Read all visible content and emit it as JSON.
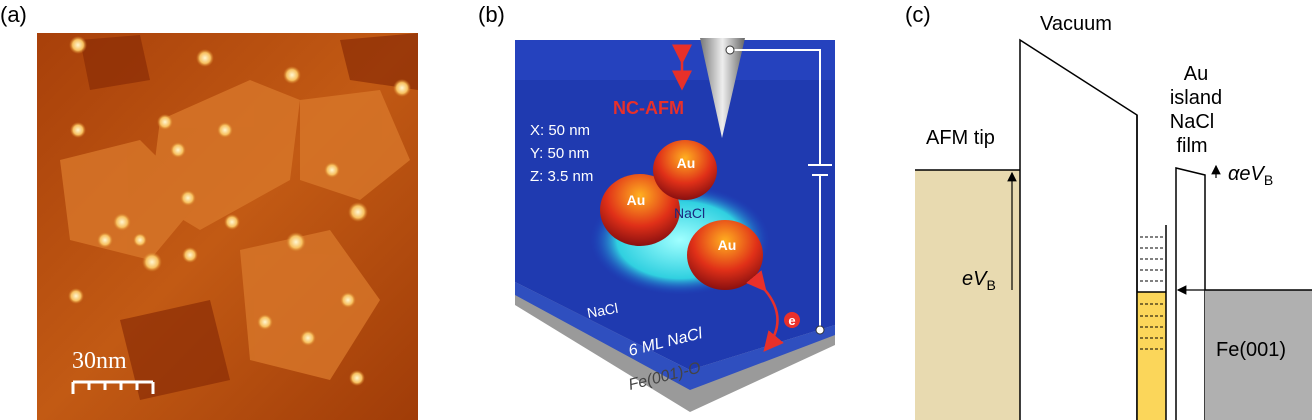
{
  "panel_a": {
    "label": "(a)",
    "scale_bar": "30nm"
  },
  "panel_b": {
    "label": "(b)",
    "technique": "NC-AFM",
    "dimensions": [
      "X: 50 nm",
      "Y: 50 nm",
      "Z: 3.5 nm"
    ],
    "islands": [
      "Au",
      "Au",
      "Au"
    ],
    "nacl_center": "NaCl",
    "nacl_left": "NaCl",
    "layer": "6 ML NaCl",
    "substrate": "Fe(001)-O",
    "electron": "e"
  },
  "panel_c": {
    "label": "(c)",
    "vacuum": "Vacuum",
    "au_island": [
      "Au",
      "island"
    ],
    "nacl_film": [
      "NaCl",
      "film"
    ],
    "afm_tip": "AFM tip",
    "alpha_bias": {
      "main": "αeV",
      "sub": "B"
    },
    "bias": {
      "main": "eV",
      "sub": "B"
    },
    "substrate": "Fe(001)"
  }
}
